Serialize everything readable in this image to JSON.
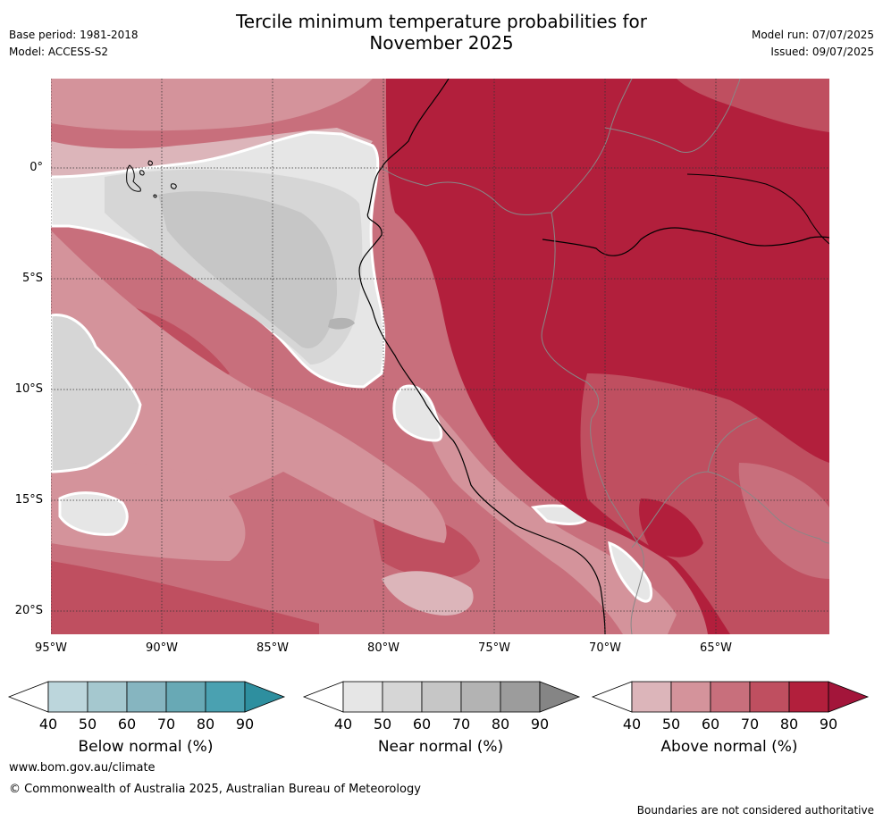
{
  "header": {
    "title_line1": "Tercile minimum temperature probabilities for",
    "title_line2": "November 2025",
    "base_period": "Base period: 1981-2018",
    "model": "Model: ACCESS-S2",
    "model_run": "Model run: 07/07/2025",
    "issued": "Issued: 09/07/2025"
  },
  "map": {
    "lat_labels": [
      "0°",
      "5°S",
      "10°S",
      "15°S",
      "20°S"
    ],
    "lon_labels": [
      "95°W",
      "90°W",
      "85°W",
      "80°W",
      "75°W",
      "70°W",
      "65°W"
    ],
    "colors": {
      "above": [
        "#dcb5ba",
        "#d4939b",
        "#c86f7c",
        "#bf4f60",
        "#b21f3c"
      ],
      "near": [
        "#e6e6e6",
        "#d6d6d6",
        "#c6c6c6",
        "#b3b3b3",
        "#9c9c9c"
      ],
      "below": [
        "#bcd6dc",
        "#a5c8cf",
        "#86b5c0",
        "#68a9b5",
        "#4aa1b1"
      ],
      "land_line": "#000000",
      "border_line": "#888888",
      "near_outline": "#ffffff"
    }
  },
  "colorbars": [
    {
      "id": "below",
      "title": "Below normal (%)",
      "ticks": [
        "40",
        "50",
        "60",
        "70",
        "80",
        "90"
      ],
      "colors": [
        "#bcd6dc",
        "#a5c8cf",
        "#86b5c0",
        "#68a9b5",
        "#4aa1b1"
      ],
      "tip": "#2e8f9f"
    },
    {
      "id": "near",
      "title": "Near normal (%)",
      "ticks": [
        "40",
        "50",
        "60",
        "70",
        "80",
        "90"
      ],
      "colors": [
        "#e6e6e6",
        "#d6d6d6",
        "#c6c6c6",
        "#b3b3b3",
        "#9c9c9c"
      ],
      "tip": "#858585"
    },
    {
      "id": "above",
      "title": "Above normal (%)",
      "ticks": [
        "40",
        "50",
        "60",
        "70",
        "80",
        "90"
      ],
      "colors": [
        "#dcb5ba",
        "#d4939b",
        "#c86f7c",
        "#bf4f60",
        "#b21f3c"
      ],
      "tip": "#a3153a"
    }
  ],
  "footer": {
    "url": "www.bom.gov.au/climate",
    "copyright": "© Commonwealth of Australia 2025, Australian Bureau of Meteorology",
    "disclaimer": "Boundaries are not considered authoritative"
  }
}
